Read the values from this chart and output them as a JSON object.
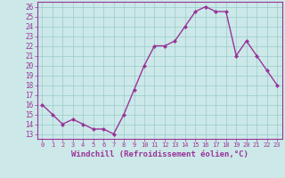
{
  "x": [
    0,
    1,
    2,
    3,
    4,
    5,
    6,
    7,
    8,
    9,
    10,
    11,
    12,
    13,
    14,
    15,
    16,
    17,
    18,
    19,
    20,
    21,
    22,
    23
  ],
  "y": [
    16,
    15,
    14,
    14.5,
    14,
    13.5,
    13.5,
    13,
    15,
    17.5,
    20,
    22,
    22,
    22.5,
    24,
    25.5,
    26,
    25.5,
    25.5,
    21,
    22.5,
    21,
    19.5,
    18
  ],
  "line_color": "#993399",
  "marker": "D",
  "marker_size": 2.0,
  "background_color": "#cce8e8",
  "grid_color": "#99cccc",
  "xlabel": "Windchill (Refroidissement éolien,°C)",
  "ylim": [
    12.5,
    26.5
  ],
  "yticks": [
    13,
    14,
    15,
    16,
    17,
    18,
    19,
    20,
    21,
    22,
    23,
    24,
    25,
    26
  ],
  "xlim": [
    -0.5,
    23.5
  ],
  "xticks": [
    0,
    1,
    2,
    3,
    4,
    5,
    6,
    7,
    8,
    9,
    10,
    11,
    12,
    13,
    14,
    15,
    16,
    17,
    18,
    19,
    20,
    21,
    22,
    23
  ],
  "tick_label_color": "#993399",
  "xlabel_color": "#993399",
  "xlabel_fontsize": 6.5,
  "ytick_fontsize": 5.5,
  "xtick_fontsize": 5.0,
  "line_width": 1.0,
  "spine_color": "#993399"
}
